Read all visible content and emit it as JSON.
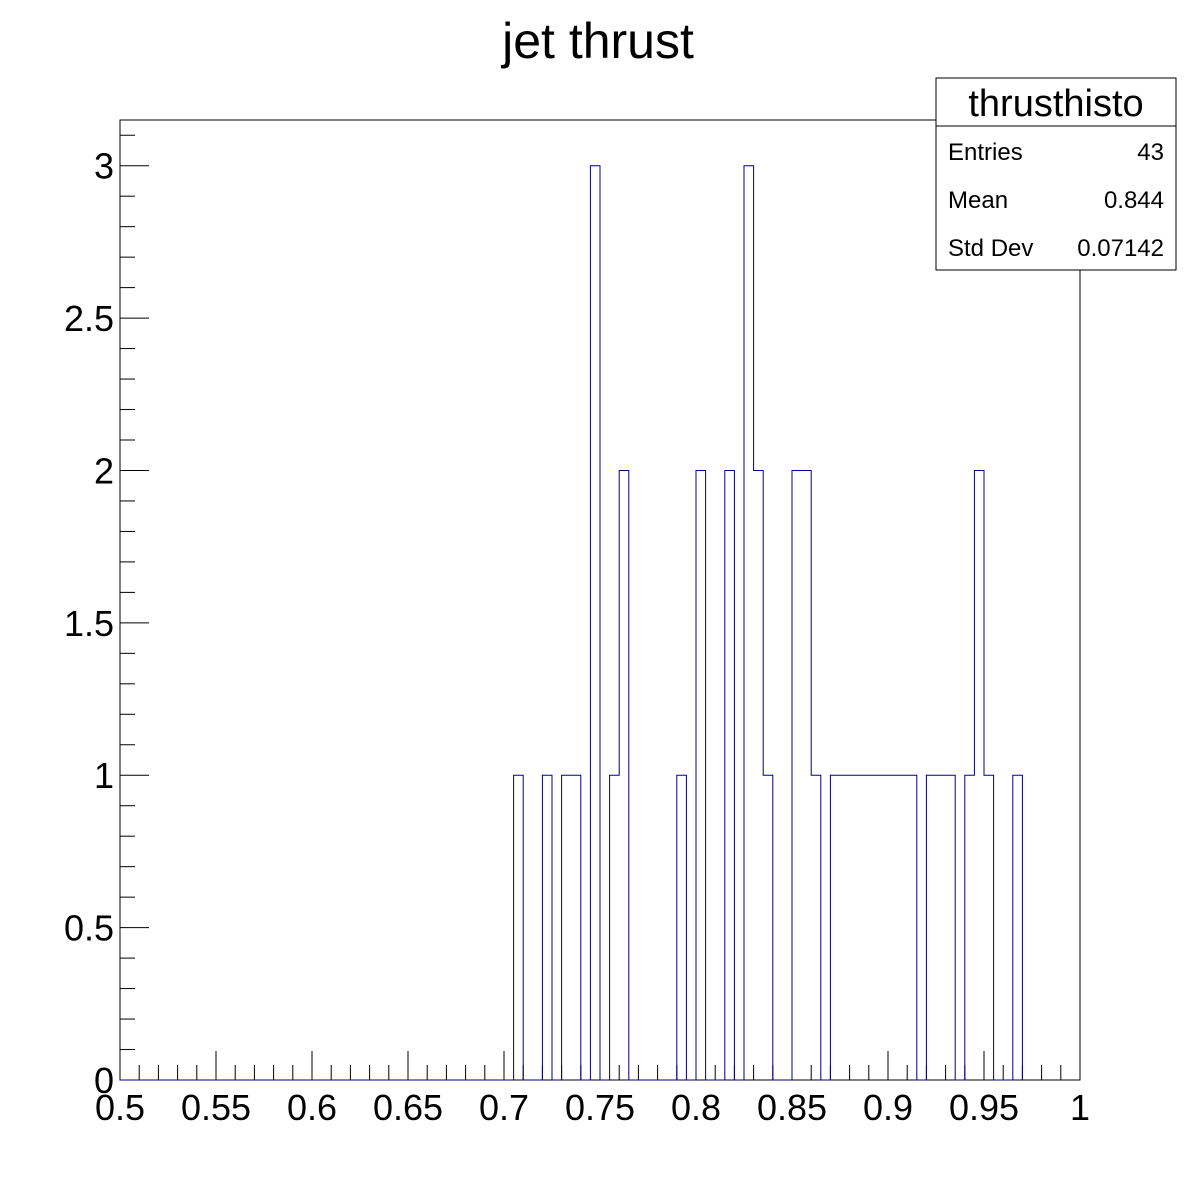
{
  "chart_data": {
    "type": "bar",
    "title": "jet thrust",
    "xlabel": "",
    "ylabel": "",
    "xlim": [
      0.5,
      1.0
    ],
    "ylim": [
      0,
      3.15
    ],
    "bin_width": 0.005,
    "x_tick_labels": [
      "0.5",
      "0.55",
      "0.6",
      "0.65",
      "0.7",
      "0.75",
      "0.8",
      "0.85",
      "0.9",
      "0.95",
      "1"
    ],
    "y_tick_labels": [
      "0",
      "0.5",
      "1",
      "1.5",
      "2",
      "2.5",
      "3"
    ],
    "bins": [
      {
        "x": 0.705,
        "count": 1
      },
      {
        "x": 0.72,
        "count": 1
      },
      {
        "x": 0.73,
        "count": 1
      },
      {
        "x": 0.735,
        "count": 1
      },
      {
        "x": 0.745,
        "count": 3
      },
      {
        "x": 0.755,
        "count": 1
      },
      {
        "x": 0.76,
        "count": 2
      },
      {
        "x": 0.79,
        "count": 1
      },
      {
        "x": 0.8,
        "count": 2
      },
      {
        "x": 0.815,
        "count": 2
      },
      {
        "x": 0.825,
        "count": 3
      },
      {
        "x": 0.83,
        "count": 2
      },
      {
        "x": 0.835,
        "count": 1
      },
      {
        "x": 0.85,
        "count": 2
      },
      {
        "x": 0.855,
        "count": 2
      },
      {
        "x": 0.86,
        "count": 1
      },
      {
        "x": 0.87,
        "count": 1
      },
      {
        "x": 0.875,
        "count": 1
      },
      {
        "x": 0.88,
        "count": 1
      },
      {
        "x": 0.885,
        "count": 1
      },
      {
        "x": 0.89,
        "count": 1
      },
      {
        "x": 0.895,
        "count": 1
      },
      {
        "x": 0.9,
        "count": 1
      },
      {
        "x": 0.905,
        "count": 1
      },
      {
        "x": 0.91,
        "count": 1
      },
      {
        "x": 0.92,
        "count": 1
      },
      {
        "x": 0.925,
        "count": 1
      },
      {
        "x": 0.93,
        "count": 1
      },
      {
        "x": 0.94,
        "count": 1
      },
      {
        "x": 0.945,
        "count": 2
      },
      {
        "x": 0.95,
        "count": 1
      },
      {
        "x": 0.965,
        "count": 1
      }
    ],
    "stats": {
      "name": "thrusthisto",
      "rows": [
        {
          "label": "Entries",
          "value": "43"
        },
        {
          "label": "Mean",
          "value": "0.844"
        },
        {
          "label": "Std Dev",
          "value": "0.07142"
        }
      ]
    },
    "colors": {
      "line": "#000080",
      "axis": "#000000",
      "background": "#ffffff"
    },
    "grid": false,
    "legend_placement": "top-right"
  }
}
